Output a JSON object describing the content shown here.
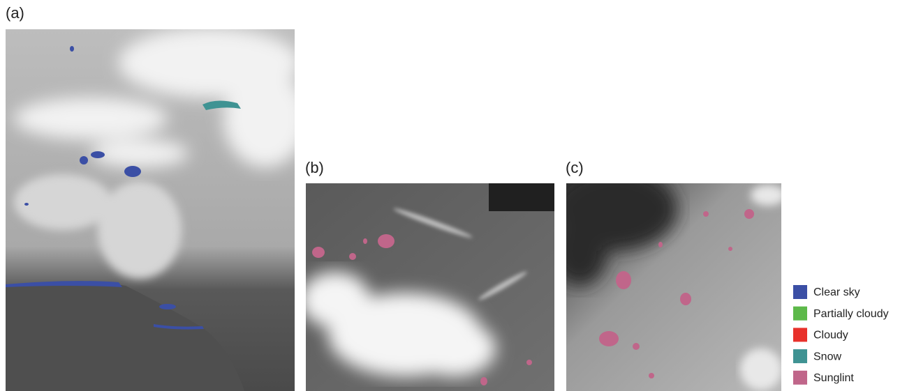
{
  "panels": [
    {
      "label": "(a)"
    },
    {
      "label": "(b)"
    },
    {
      "label": "(c)"
    }
  ],
  "legend": [
    {
      "label": "Clear sky",
      "color": "#3b4fa5"
    },
    {
      "label": "Partially cloudy",
      "color": "#5db94a"
    },
    {
      "label": "Cloudy",
      "color": "#e8312b"
    },
    {
      "label": "Snow",
      "color": "#3f9393"
    },
    {
      "label": "Sunglint",
      "color": "#c0668a"
    }
  ]
}
